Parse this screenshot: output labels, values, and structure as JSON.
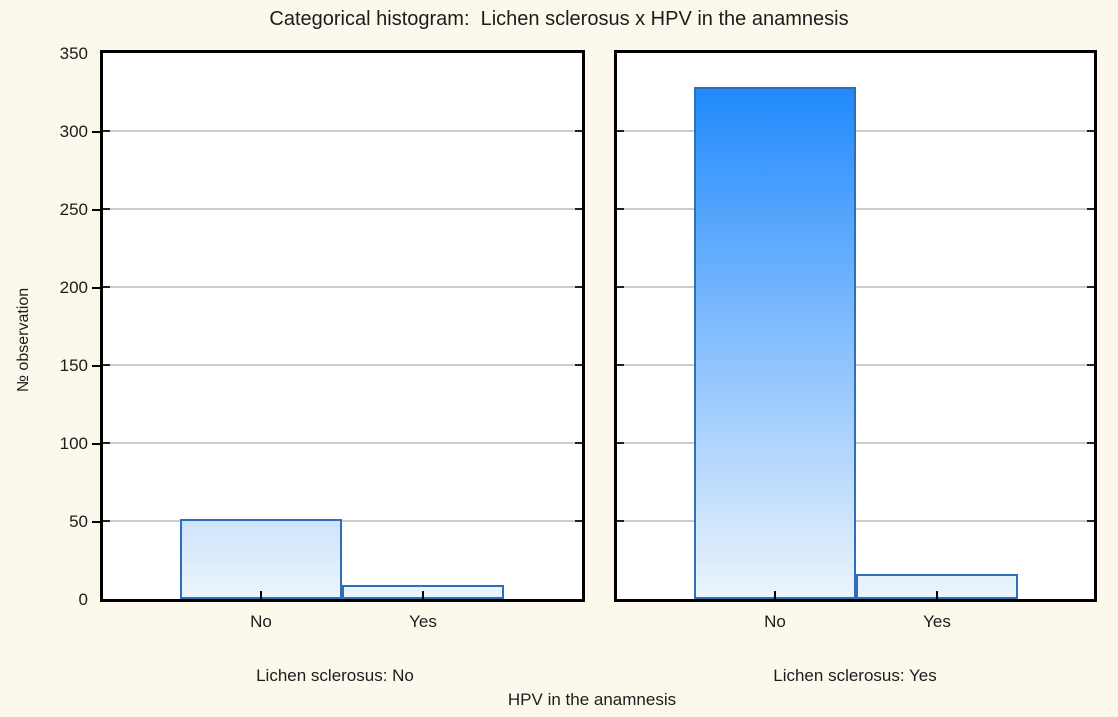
{
  "chart_data": {
    "type": "bar",
    "title": "Categorical histogram:  Lichen sclerosus x HPV in the anamnesis",
    "xlabel": "HPV in the anamnesis",
    "ylabel": "№ observation",
    "ylim": [
      0,
      350
    ],
    "yticks": [
      0,
      50,
      100,
      150,
      200,
      250,
      300,
      350
    ],
    "grid": "horizontal",
    "legend": "none",
    "categories": [
      "No",
      "Yes"
    ],
    "panels": [
      {
        "label": "Lichen sclerosus: No",
        "categories": [
          "No",
          "Yes"
        ],
        "values": [
          51,
          9
        ]
      },
      {
        "label": "Lichen sclerosus: Yes",
        "categories": [
          "No",
          "Yes"
        ],
        "values": [
          328,
          16
        ]
      }
    ],
    "colors": {
      "page_background": "#fdf8ec",
      "plot_background": "#ffffff",
      "frame": "#000000",
      "gridline": "#cccccc",
      "bar_border": "#2d6fb8",
      "bar_gradient_top": "#1282fc",
      "bar_gradient_bottom": "#ecf4fd",
      "text": "#1c1c1c"
    }
  }
}
